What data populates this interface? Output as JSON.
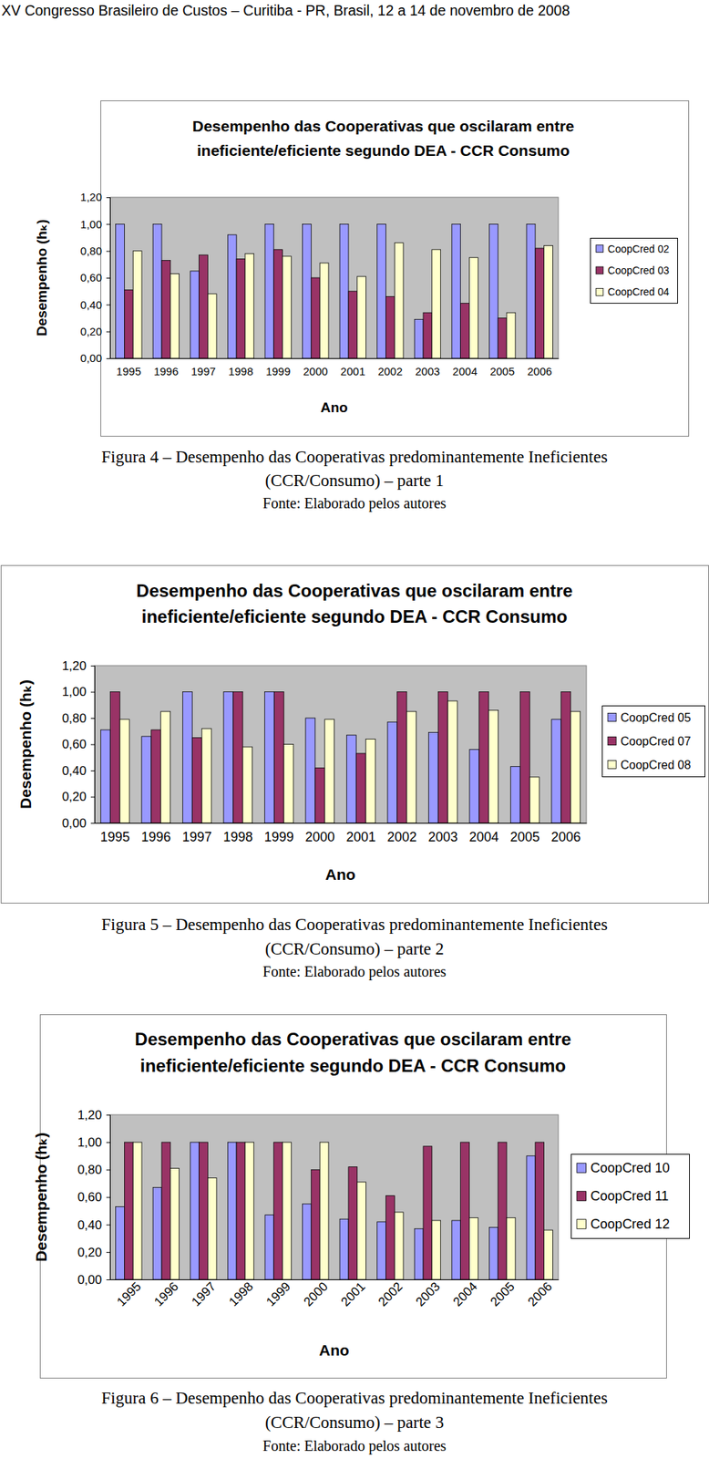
{
  "header": "XV Congresso Brasileiro de Custos – Curitiba - PR, Brasil, 12 a 14 de novembro de 2008",
  "captions": [
    [
      "Figura 4 – Desempenho das Cooperativas predominantemente Ineficientes",
      "(CCR/Consumo) – parte 1",
      "Fonte: Elaborado pelos autores"
    ],
    [
      "Figura 5 – Desempenho das Cooperativas predominantemente Ineficientes",
      "(CCR/Consumo) – parte 2",
      "Fonte: Elaborado pelos autores"
    ],
    [
      "Figura 6 – Desempenho das Cooperativas predominantemente Ineficientes",
      "(CCR/Consumo) – parte 3",
      "Fonte: Elaborado pelos autores"
    ]
  ],
  "chart_data": [
    {
      "type": "bar",
      "title": [
        "Desempenho das Cooperativas que oscilaram entre",
        "ineficiente/eficiente segundo DEA - CCR Consumo"
      ],
      "x_label": "Ano",
      "y_label": "Desempenho (hₖ)",
      "categories": [
        "1995",
        "1996",
        "1997",
        "1998",
        "1999",
        "2000",
        "2001",
        "2002",
        "2003",
        "2004",
        "2005",
        "2006"
      ],
      "series": [
        {
          "name": "CoopCred 02",
          "color": "#9999ff",
          "values": [
            1.0,
            1.0,
            0.65,
            0.92,
            1.0,
            1.0,
            1.0,
            1.0,
            0.29,
            1.0,
            1.0,
            1.0
          ]
        },
        {
          "name": "CoopCred 03",
          "color": "#993366",
          "values": [
            0.51,
            0.73,
            0.77,
            0.74,
            0.81,
            0.6,
            0.5,
            0.46,
            0.34,
            0.41,
            0.3,
            0.82
          ]
        },
        {
          "name": "CoopCred 04",
          "color": "#ffffcc",
          "values": [
            0.8,
            0.63,
            0.48,
            0.78,
            0.76,
            0.71,
            0.61,
            0.86,
            0.81,
            0.75,
            0.34,
            0.84
          ]
        }
      ],
      "ylim": [
        0,
        1.2
      ],
      "yticks": [
        {
          "value": 0,
          "label": "0,00"
        },
        {
          "value": 0.2,
          "label": "0,20"
        },
        {
          "value": 0.4,
          "label": "0,40"
        },
        {
          "value": 0.6,
          "label": "0,60"
        },
        {
          "value": 0.8,
          "label": "0,80"
        },
        {
          "value": 1,
          "label": "1,00"
        },
        {
          "value": 1.2,
          "label": "1,20"
        }
      ],
      "grid": false,
      "legend": "right"
    },
    {
      "type": "bar",
      "title": [
        "Desempenho das Cooperativas que oscilaram entre",
        "ineficiente/eficiente segundo DEA - CCR Consumo"
      ],
      "x_label": "Ano",
      "y_label": "Desempenho (hₖ)",
      "categories": [
        "1995",
        "1996",
        "1997",
        "1998",
        "1999",
        "2000",
        "2001",
        "2002",
        "2003",
        "2004",
        "2005",
        "2006"
      ],
      "series": [
        {
          "name": "CoopCred 05",
          "color": "#9999ff",
          "values": [
            0.71,
            0.66,
            1.0,
            1.0,
            1.0,
            0.8,
            0.67,
            0.77,
            0.69,
            0.56,
            0.43,
            0.79
          ]
        },
        {
          "name": "CoopCred 07",
          "color": "#993366",
          "values": [
            1.0,
            0.71,
            0.65,
            1.0,
            1.0,
            0.42,
            0.53,
            1.0,
            1.0,
            1.0,
            1.0,
            1.0
          ]
        },
        {
          "name": "CoopCred 08",
          "color": "#ffffcc",
          "values": [
            0.79,
            0.85,
            0.72,
            0.58,
            0.6,
            0.79,
            0.64,
            0.85,
            0.93,
            0.86,
            0.35,
            0.85
          ]
        }
      ],
      "ylim": [
        0,
        1.2
      ],
      "yticks": [
        {
          "value": 0,
          "label": "0,00"
        },
        {
          "value": 0.2,
          "label": "0,20"
        },
        {
          "value": 0.4,
          "label": "0,40"
        },
        {
          "value": 0.6,
          "label": "0,60"
        },
        {
          "value": 0.8,
          "label": "0,80"
        },
        {
          "value": 1,
          "label": "1,00"
        },
        {
          "value": 1.2,
          "label": "1,20"
        }
      ],
      "grid": false,
      "legend": "right"
    },
    {
      "type": "bar",
      "title": [
        "Desempenho das Cooperativas que oscilaram entre",
        "ineficiente/eficiente segundo DEA - CCR Consumo"
      ],
      "x_label": "Ano",
      "y_label": "Desempenho (hₖ)",
      "categories": [
        "1995",
        "1996",
        "1997",
        "1998",
        "1999",
        "2000",
        "2001",
        "2002",
        "2003",
        "2004",
        "2005",
        "2006"
      ],
      "series": [
        {
          "name": "CoopCred 10",
          "color": "#9999ff",
          "values": [
            0.53,
            0.67,
            1.0,
            1.0,
            0.47,
            0.55,
            0.44,
            0.42,
            0.37,
            0.43,
            0.38,
            0.9
          ]
        },
        {
          "name": "CoopCred 11",
          "color": "#993366",
          "values": [
            1.0,
            1.0,
            1.0,
            1.0,
            1.0,
            0.8,
            0.82,
            0.61,
            0.97,
            1.0,
            1.0,
            1.0
          ]
        },
        {
          "name": "CoopCred 12",
          "color": "#ffffcc",
          "values": [
            1.0,
            0.81,
            0.74,
            1.0,
            1.0,
            1.0,
            0.71,
            0.49,
            0.43,
            0.45,
            0.45,
            0.36
          ]
        }
      ],
      "ylim": [
        0,
        1.2
      ],
      "yticks": [
        {
          "value": 0,
          "label": "0,00"
        },
        {
          "value": 0.2,
          "label": "0,20"
        },
        {
          "value": 0.4,
          "label": "0,40"
        },
        {
          "value": 0.6,
          "label": "0,60"
        },
        {
          "value": 0.8,
          "label": "0,80"
        },
        {
          "value": 1,
          "label": "1,00"
        },
        {
          "value": 1.2,
          "label": "1,20"
        }
      ],
      "grid": false,
      "legend": "right"
    }
  ]
}
